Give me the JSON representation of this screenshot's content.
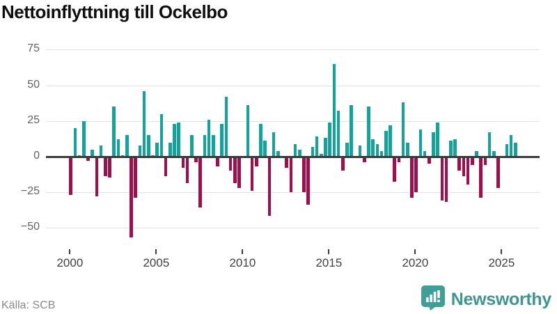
{
  "title": "Nettoinflyttning till Ockelbo",
  "source": "Källa: SCB",
  "brand": {
    "name": "Newsworthy",
    "logo_icon": "bar-chart-badge-icon"
  },
  "colors": {
    "positive": "#11a39c",
    "negative": "#a40d4c",
    "axis": "#3a3a3a",
    "gridline": "#e2e2e2",
    "brand_teal": "#3d968f",
    "title_text": "#0e0e0e",
    "tick_text": "#424242",
    "source_text": "#8a8a8a"
  },
  "chart_data": {
    "type": "bar",
    "title": "Nettoinflyttning till Ockelbo",
    "frequency": "quarterly",
    "start_period": "2000Q1",
    "end_period": "2025Q4",
    "values": [
      -26,
      20,
      1,
      25,
      -2,
      5,
      -27,
      8,
      -13,
      -14,
      35,
      12,
      1,
      15,
      -56,
      -28,
      8,
      46,
      15,
      1,
      10,
      30,
      -13,
      10,
      23,
      24,
      -7,
      -18,
      15,
      -3,
      -35,
      15,
      26,
      15,
      -6,
      23,
      42,
      -9,
      -18,
      -21,
      0,
      36,
      -23,
      -6,
      23,
      11,
      -41,
      17,
      4,
      0,
      -7,
      -24,
      9,
      5,
      -24,
      -33,
      7,
      14,
      2,
      13,
      24,
      65,
      32,
      -9,
      10,
      36,
      0,
      8,
      -3,
      35,
      12,
      9,
      4,
      18,
      22,
      -17,
      -3,
      38,
      10,
      -28,
      -24,
      19,
      4,
      -4,
      17,
      24,
      -30,
      -31,
      11,
      12,
      -9,
      -13,
      -19,
      -5,
      4,
      -28,
      -5,
      17,
      4,
      -21,
      0,
      9,
      15,
      10
    ],
    "xlabel": "",
    "ylabel": "",
    "ylim": [
      -65,
      80
    ],
    "ytick_values": [
      75,
      50,
      25,
      0,
      -25,
      -50
    ],
    "ytick_labels": [
      "75",
      "50",
      "25",
      "0",
      "−25",
      "−50"
    ],
    "xtick_years": [
      2000,
      2005,
      2010,
      2015,
      2020,
      2025
    ],
    "xtick_labels": [
      "2000",
      "2005",
      "2010",
      "2015",
      "2020",
      "2025"
    ],
    "grid": true,
    "legend": "none"
  }
}
